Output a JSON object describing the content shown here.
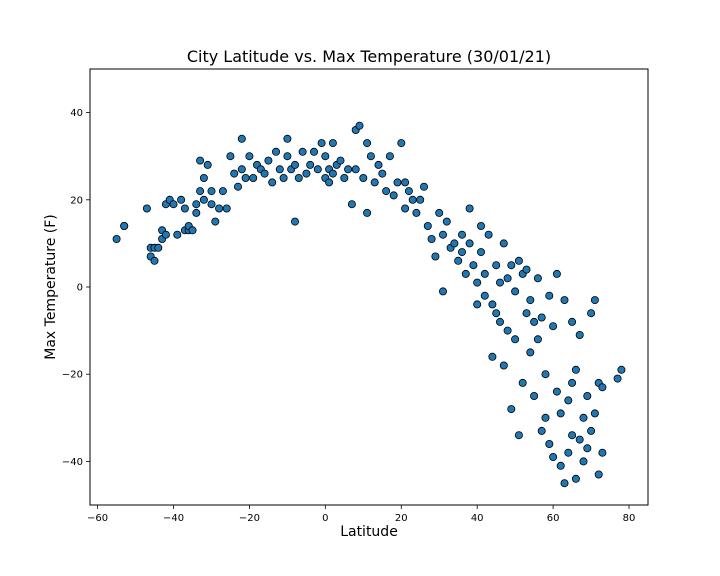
{
  "chart_data": {
    "type": "scatter",
    "title": "City Latitude vs. Max Temperature (30/01/21)",
    "xlabel": "Latitude",
    "ylabel": "Max Temperature (F)",
    "xlim": [
      -62,
      85
    ],
    "ylim": [
      -50,
      50
    ],
    "xticks": [
      -60,
      -40,
      -20,
      0,
      20,
      40,
      60,
      80
    ],
    "yticks": [
      -40,
      -20,
      0,
      20,
      40
    ],
    "grid": false,
    "legend": "none",
    "marker_color": "#1f77b4",
    "marker_edge_color": "#000000",
    "series": [
      {
        "points": [
          [
            -55,
            11
          ],
          [
            -53,
            14
          ],
          [
            -53,
            14
          ],
          [
            -47,
            18
          ],
          [
            -46,
            9
          ],
          [
            -45,
            9
          ],
          [
            -46,
            7
          ],
          [
            -45,
            6
          ],
          [
            -44,
            9
          ],
          [
            -43,
            13
          ],
          [
            -43,
            11
          ],
          [
            -42,
            12
          ],
          [
            -42,
            19
          ],
          [
            -41,
            20
          ],
          [
            -40,
            19
          ],
          [
            -39,
            12
          ],
          [
            -38,
            20
          ],
          [
            -37,
            18
          ],
          [
            -37,
            13
          ],
          [
            -36,
            13
          ],
          [
            -36,
            14
          ],
          [
            -35,
            13
          ],
          [
            -34,
            19
          ],
          [
            -34,
            17
          ],
          [
            -33,
            22
          ],
          [
            -33,
            29
          ],
          [
            -32,
            20
          ],
          [
            -32,
            25
          ],
          [
            -31,
            28
          ],
          [
            -30,
            22
          ],
          [
            -30,
            19
          ],
          [
            -29,
            15
          ],
          [
            -28,
            18
          ],
          [
            -27,
            22
          ],
          [
            -26,
            18
          ],
          [
            -25,
            30
          ],
          [
            -24,
            26
          ],
          [
            -23,
            23
          ],
          [
            -22,
            34
          ],
          [
            -22,
            27
          ],
          [
            -21,
            25
          ],
          [
            -20,
            30
          ],
          [
            -19,
            25
          ],
          [
            -18,
            28
          ],
          [
            -17,
            27
          ],
          [
            -16,
            26
          ],
          [
            -15,
            29
          ],
          [
            -14,
            24
          ],
          [
            -13,
            31
          ],
          [
            -12,
            27
          ],
          [
            -11,
            25
          ],
          [
            -10,
            34
          ],
          [
            -10,
            30
          ],
          [
            -9,
            27
          ],
          [
            -8,
            28
          ],
          [
            -8,
            15
          ],
          [
            -7,
            25
          ],
          [
            -6,
            31
          ],
          [
            -5,
            26
          ],
          [
            -4,
            28
          ],
          [
            -3,
            31
          ],
          [
            -2,
            27
          ],
          [
            -1,
            33
          ],
          [
            0,
            25
          ],
          [
            0,
            30
          ],
          [
            1,
            27
          ],
          [
            1,
            24
          ],
          [
            2,
            26
          ],
          [
            2,
            33
          ],
          [
            3,
            28
          ],
          [
            4,
            29
          ],
          [
            5,
            25
          ],
          [
            6,
            27
          ],
          [
            7,
            19
          ],
          [
            8,
            36
          ],
          [
            8,
            27
          ],
          [
            9,
            37
          ],
          [
            10,
            25
          ],
          [
            11,
            33
          ],
          [
            11,
            17
          ],
          [
            12,
            30
          ],
          [
            13,
            24
          ],
          [
            14,
            28
          ],
          [
            15,
            26
          ],
          [
            16,
            22
          ],
          [
            17,
            30
          ],
          [
            18,
            21
          ],
          [
            19,
            24
          ],
          [
            20,
            33
          ],
          [
            21,
            18
          ],
          [
            21,
            24
          ],
          [
            22,
            22
          ],
          [
            23,
            20
          ],
          [
            24,
            17
          ],
          [
            25,
            20
          ],
          [
            26,
            23
          ],
          [
            27,
            14
          ],
          [
            28,
            11
          ],
          [
            29,
            7
          ],
          [
            30,
            17
          ],
          [
            31,
            12
          ],
          [
            31,
            -1
          ],
          [
            32,
            15
          ],
          [
            33,
            9
          ],
          [
            34,
            10
          ],
          [
            35,
            6
          ],
          [
            36,
            12
          ],
          [
            36,
            8
          ],
          [
            37,
            3
          ],
          [
            38,
            18
          ],
          [
            38,
            10
          ],
          [
            39,
            5
          ],
          [
            40,
            -4
          ],
          [
            40,
            1
          ],
          [
            41,
            14
          ],
          [
            41,
            8
          ],
          [
            42,
            -2
          ],
          [
            42,
            3
          ],
          [
            43,
            12
          ],
          [
            44,
            -4
          ],
          [
            44,
            -16
          ],
          [
            45,
            -6
          ],
          [
            45,
            5
          ],
          [
            46,
            1
          ],
          [
            46,
            -8
          ],
          [
            47,
            10
          ],
          [
            47,
            -18
          ],
          [
            48,
            2
          ],
          [
            48,
            -10
          ],
          [
            49,
            -28
          ],
          [
            49,
            5
          ],
          [
            50,
            -12
          ],
          [
            50,
            -1
          ],
          [
            51,
            6
          ],
          [
            51,
            -34
          ],
          [
            52,
            3
          ],
          [
            52,
            -22
          ],
          [
            53,
            -6
          ],
          [
            53,
            4
          ],
          [
            54,
            -15
          ],
          [
            54,
            -3
          ],
          [
            55,
            -8
          ],
          [
            55,
            -25
          ],
          [
            56,
            2
          ],
          [
            56,
            -12
          ],
          [
            57,
            -7
          ],
          [
            57,
            -33
          ],
          [
            58,
            -30
          ],
          [
            58,
            -20
          ],
          [
            59,
            -2
          ],
          [
            59,
            -36
          ],
          [
            60,
            -9
          ],
          [
            60,
            -39
          ],
          [
            61,
            -24
          ],
          [
            61,
            3
          ],
          [
            62,
            -41
          ],
          [
            62,
            -29
          ],
          [
            63,
            -3
          ],
          [
            63,
            -45
          ],
          [
            64,
            -38
          ],
          [
            64,
            -26
          ],
          [
            65,
            -8
          ],
          [
            65,
            -34
          ],
          [
            65,
            -22
          ],
          [
            66,
            -19
          ],
          [
            66,
            -44
          ],
          [
            67,
            -35
          ],
          [
            67,
            -11
          ],
          [
            68,
            -30
          ],
          [
            68,
            -40
          ],
          [
            69,
            -37
          ],
          [
            69,
            -25
          ],
          [
            70,
            -33
          ],
          [
            70,
            -6
          ],
          [
            71,
            -29
          ],
          [
            71,
            -3
          ],
          [
            72,
            -43
          ],
          [
            72,
            -22
          ],
          [
            73,
            -38
          ],
          [
            73,
            -23
          ],
          [
            77,
            -21
          ],
          [
            78,
            -19
          ]
        ]
      }
    ]
  }
}
